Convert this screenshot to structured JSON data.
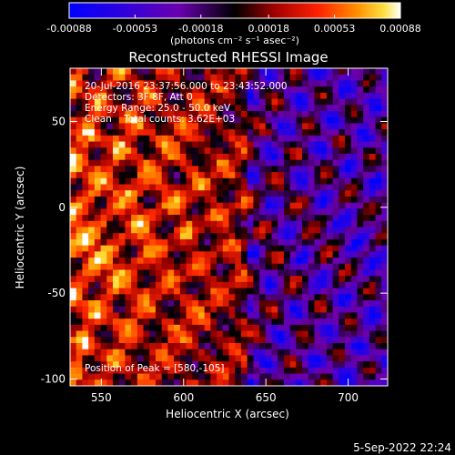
{
  "chart_data": {
    "type": "heatmap",
    "title": "Reconstructed RHESSI Image",
    "xlabel": "Heliocentric X (arcsec)",
    "ylabel": "Heliocentric Y (arcsec)",
    "xlim": [
      531,
      724
    ],
    "ylim": [
      -104,
      81
    ],
    "xticks": [
      550,
      600,
      650,
      700
    ],
    "yticks": [
      50,
      0,
      -50,
      -100
    ],
    "colorbar": {
      "ticks": [
        "-0.00088",
        "-0.00053",
        "-0.00018",
        "0.00018",
        "0.00053",
        "0.00088"
      ],
      "min": -0.00088,
      "max": 0.00088,
      "unit_label": "(photons cm⁻² s⁻¹ asec⁻²)"
    },
    "annotations": {
      "time_range": "20-Jul-2016 23:37:56.000 to 23:43:52.000",
      "detectors": "Detectors: 3F 8F, Att 0",
      "energy": "Energy Range: 25.0 - 50.0 keV",
      "clean": "Clean    Total counts: 3.62E+03",
      "peak": "Position of Peak = [580,-105]"
    },
    "footer_date": "5-Sep-2022 22:24"
  }
}
